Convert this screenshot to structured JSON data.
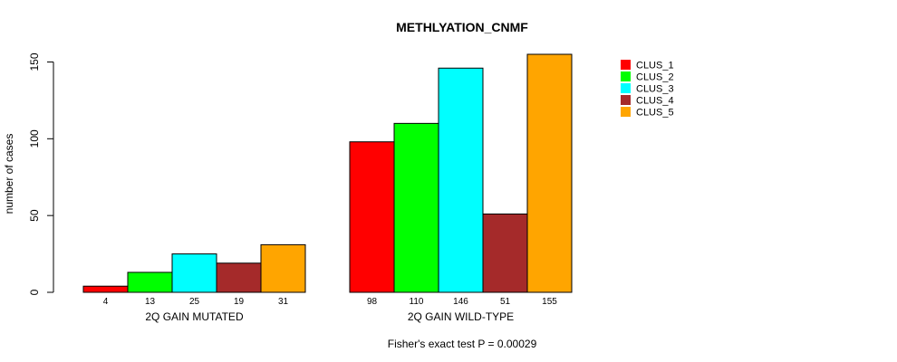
{
  "chart_data": {
    "type": "bar",
    "title": "METHLYATION_CNMF",
    "ylabel": "number of cases",
    "ylim": [
      0,
      155
    ],
    "yticks": [
      0,
      50,
      100,
      150
    ],
    "grid": false,
    "legend_position": "right",
    "categories": [
      "2Q GAIN MUTATED",
      "2Q GAIN WILD-TYPE"
    ],
    "series": [
      {
        "name": "CLUS_1",
        "color": "#ff0000",
        "values": [
          4,
          98
        ]
      },
      {
        "name": "CLUS_2",
        "color": "#00ff00",
        "values": [
          13,
          110
        ]
      },
      {
        "name": "CLUS_3",
        "color": "#00ffff",
        "values": [
          25,
          146
        ]
      },
      {
        "name": "CLUS_4",
        "color": "#a52a2a",
        "values": [
          19,
          51
        ]
      },
      {
        "name": "CLUS_5",
        "color": "#ffa500",
        "values": [
          31,
          155
        ]
      }
    ],
    "footnote": "Fisher's exact test P = 0.00029"
  }
}
